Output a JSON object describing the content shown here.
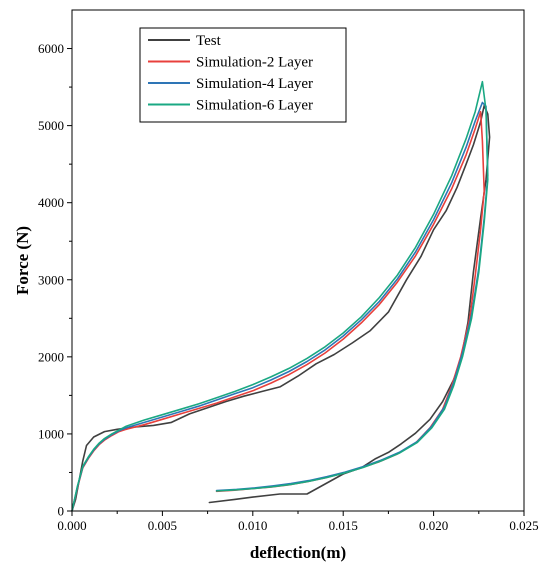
{
  "chart_data": {
    "type": "line",
    "title": "",
    "xlabel": "deflection(m)",
    "ylabel": "Force (N)",
    "xlim": [
      0,
      0.025
    ],
    "ylim": [
      0,
      6500
    ],
    "x_ticks": [
      {
        "value": 0.0,
        "label": "0.000"
      },
      {
        "value": 0.005,
        "label": "0.005"
      },
      {
        "value": 0.01,
        "label": "0.010"
      },
      {
        "value": 0.015,
        "label": "0.015"
      },
      {
        "value": 0.02,
        "label": "0.020"
      },
      {
        "value": 0.025,
        "label": "0.025"
      }
    ],
    "y_ticks": [
      {
        "value": 0,
        "label": "0"
      },
      {
        "value": 1000,
        "label": "1000"
      },
      {
        "value": 2000,
        "label": "2000"
      },
      {
        "value": 3000,
        "label": "3000"
      },
      {
        "value": 4000,
        "label": "4000"
      },
      {
        "value": 5000,
        "label": "5000"
      },
      {
        "value": 6000,
        "label": "6000"
      }
    ],
    "grid": false,
    "legend_position": "top-left",
    "series": [
      {
        "name": "Test",
        "color": "#404040",
        "points": [
          [
            0.0,
            0
          ],
          [
            0.0002,
            150
          ],
          [
            0.0004,
            400
          ],
          [
            0.0006,
            650
          ],
          [
            0.0008,
            850
          ],
          [
            0.0012,
            960
          ],
          [
            0.0018,
            1030
          ],
          [
            0.0025,
            1060
          ],
          [
            0.0035,
            1090
          ],
          [
            0.0045,
            1110
          ],
          [
            0.0055,
            1150
          ],
          [
            0.0065,
            1260
          ],
          [
            0.0075,
            1340
          ],
          [
            0.0085,
            1420
          ],
          [
            0.0095,
            1490
          ],
          [
            0.0105,
            1550
          ],
          [
            0.0115,
            1610
          ],
          [
            0.0125,
            1750
          ],
          [
            0.0135,
            1910
          ],
          [
            0.0145,
            2030
          ],
          [
            0.0155,
            2180
          ],
          [
            0.0165,
            2340
          ],
          [
            0.0175,
            2580
          ],
          [
            0.0185,
            3000
          ],
          [
            0.0193,
            3300
          ],
          [
            0.02,
            3650
          ],
          [
            0.0207,
            3900
          ],
          [
            0.0213,
            4200
          ],
          [
            0.0218,
            4500
          ],
          [
            0.0222,
            4750
          ],
          [
            0.0226,
            5050
          ],
          [
            0.0228,
            5260
          ],
          [
            0.023,
            5150
          ],
          [
            0.0231,
            4850
          ],
          [
            0.0229,
            4300
          ],
          [
            0.0226,
            3800
          ],
          [
            0.0222,
            3100
          ],
          [
            0.0219,
            2450
          ],
          [
            0.0215,
            1950
          ],
          [
            0.0211,
            1700
          ],
          [
            0.0205,
            1420
          ],
          [
            0.0198,
            1190
          ],
          [
            0.019,
            1010
          ],
          [
            0.0182,
            870
          ],
          [
            0.0175,
            760
          ],
          [
            0.0168,
            680
          ],
          [
            0.016,
            560
          ],
          [
            0.015,
            480
          ],
          [
            0.014,
            350
          ],
          [
            0.013,
            220
          ],
          [
            0.0115,
            220
          ],
          [
            0.01,
            180
          ],
          [
            0.009,
            150
          ],
          [
            0.0076,
            110
          ]
        ]
      },
      {
        "name": "Simulation-2 Layer",
        "color": "#e8403c",
        "points": [
          [
            0.0,
            0
          ],
          [
            0.0003,
            300
          ],
          [
            0.0006,
            560
          ],
          [
            0.0009,
            680
          ],
          [
            0.0012,
            780
          ],
          [
            0.0015,
            860
          ],
          [
            0.0018,
            920
          ],
          [
            0.0022,
            980
          ],
          [
            0.0026,
            1030
          ],
          [
            0.003,
            1060
          ],
          [
            0.004,
            1120
          ],
          [
            0.005,
            1190
          ],
          [
            0.006,
            1260
          ],
          [
            0.007,
            1330
          ],
          [
            0.008,
            1400
          ],
          [
            0.009,
            1480
          ],
          [
            0.01,
            1560
          ],
          [
            0.011,
            1660
          ],
          [
            0.012,
            1770
          ],
          [
            0.013,
            1900
          ],
          [
            0.014,
            2050
          ],
          [
            0.015,
            2230
          ],
          [
            0.016,
            2440
          ],
          [
            0.017,
            2680
          ],
          [
            0.018,
            2970
          ],
          [
            0.019,
            3310
          ],
          [
            0.02,
            3720
          ],
          [
            0.021,
            4180
          ],
          [
            0.0218,
            4620
          ],
          [
            0.0223,
            4960
          ],
          [
            0.0226,
            5180
          ],
          [
            0.0227,
            4800
          ],
          [
            0.0228,
            4150
          ],
          [
            0.0226,
            3650
          ],
          [
            0.0223,
            3050
          ],
          [
            0.022,
            2500
          ],
          [
            0.0215,
            2000
          ],
          [
            0.021,
            1620
          ],
          [
            0.0205,
            1320
          ],
          [
            0.0198,
            1080
          ],
          [
            0.019,
            880
          ],
          [
            0.018,
            740
          ],
          [
            0.017,
            640
          ],
          [
            0.016,
            560
          ],
          [
            0.015,
            490
          ],
          [
            0.014,
            430
          ],
          [
            0.013,
            380
          ],
          [
            0.012,
            340
          ],
          [
            0.011,
            310
          ],
          [
            0.01,
            290
          ],
          [
            0.009,
            270
          ],
          [
            0.008,
            255
          ]
        ]
      },
      {
        "name": "Simulation-4 Layer",
        "color": "#2e75b6",
        "points": [
          [
            0.0,
            0
          ],
          [
            0.0003,
            310
          ],
          [
            0.0006,
            570
          ],
          [
            0.0009,
            690
          ],
          [
            0.0012,
            790
          ],
          [
            0.0015,
            870
          ],
          [
            0.0018,
            930
          ],
          [
            0.0022,
            990
          ],
          [
            0.0026,
            1040
          ],
          [
            0.003,
            1080
          ],
          [
            0.004,
            1150
          ],
          [
            0.005,
            1220
          ],
          [
            0.006,
            1290
          ],
          [
            0.007,
            1360
          ],
          [
            0.008,
            1440
          ],
          [
            0.009,
            1520
          ],
          [
            0.01,
            1600
          ],
          [
            0.011,
            1700
          ],
          [
            0.012,
            1810
          ],
          [
            0.013,
            1940
          ],
          [
            0.014,
            2090
          ],
          [
            0.015,
            2270
          ],
          [
            0.016,
            2480
          ],
          [
            0.017,
            2720
          ],
          [
            0.018,
            3010
          ],
          [
            0.019,
            3360
          ],
          [
            0.02,
            3780
          ],
          [
            0.021,
            4260
          ],
          [
            0.0218,
            4720
          ],
          [
            0.0223,
            5060
          ],
          [
            0.0227,
            5300
          ],
          [
            0.0229,
            5250
          ],
          [
            0.023,
            4350
          ],
          [
            0.0228,
            3800
          ],
          [
            0.0225,
            3150
          ],
          [
            0.0221,
            2550
          ],
          [
            0.0216,
            2050
          ],
          [
            0.0211,
            1660
          ],
          [
            0.0206,
            1350
          ],
          [
            0.0199,
            1100
          ],
          [
            0.0191,
            900
          ],
          [
            0.0181,
            760
          ],
          [
            0.0171,
            660
          ],
          [
            0.0161,
            575
          ],
          [
            0.0151,
            505
          ],
          [
            0.0141,
            445
          ],
          [
            0.0131,
            395
          ],
          [
            0.0121,
            355
          ],
          [
            0.0111,
            325
          ],
          [
            0.0101,
            300
          ],
          [
            0.0091,
            280
          ],
          [
            0.008,
            265
          ]
        ]
      },
      {
        "name": "Simulation-6 Layer",
        "color": "#1aa883",
        "points": [
          [
            0.0,
            0
          ],
          [
            0.0003,
            320
          ],
          [
            0.0006,
            580
          ],
          [
            0.0009,
            700
          ],
          [
            0.0012,
            800
          ],
          [
            0.0015,
            880
          ],
          [
            0.0018,
            940
          ],
          [
            0.0022,
            1000
          ],
          [
            0.0026,
            1050
          ],
          [
            0.003,
            1100
          ],
          [
            0.004,
            1180
          ],
          [
            0.005,
            1250
          ],
          [
            0.006,
            1320
          ],
          [
            0.007,
            1390
          ],
          [
            0.008,
            1470
          ],
          [
            0.009,
            1550
          ],
          [
            0.01,
            1640
          ],
          [
            0.011,
            1740
          ],
          [
            0.012,
            1850
          ],
          [
            0.013,
            1980
          ],
          [
            0.014,
            2130
          ],
          [
            0.015,
            2310
          ],
          [
            0.016,
            2520
          ],
          [
            0.017,
            2770
          ],
          [
            0.018,
            3060
          ],
          [
            0.019,
            3420
          ],
          [
            0.02,
            3850
          ],
          [
            0.021,
            4350
          ],
          [
            0.0218,
            4830
          ],
          [
            0.0223,
            5180
          ],
          [
            0.0227,
            5570
          ],
          [
            0.0229,
            5200
          ],
          [
            0.023,
            4300
          ],
          [
            0.0228,
            3750
          ],
          [
            0.0225,
            3100
          ],
          [
            0.0221,
            2500
          ],
          [
            0.0216,
            2000
          ],
          [
            0.0211,
            1620
          ],
          [
            0.0206,
            1320
          ],
          [
            0.0199,
            1080
          ],
          [
            0.0191,
            890
          ],
          [
            0.0181,
            750
          ],
          [
            0.0171,
            650
          ],
          [
            0.0161,
            565
          ],
          [
            0.0151,
            495
          ],
          [
            0.0141,
            435
          ],
          [
            0.0131,
            385
          ],
          [
            0.0121,
            345
          ],
          [
            0.0111,
            315
          ],
          [
            0.0101,
            292
          ],
          [
            0.0091,
            275
          ],
          [
            0.008,
            260
          ]
        ]
      }
    ]
  }
}
